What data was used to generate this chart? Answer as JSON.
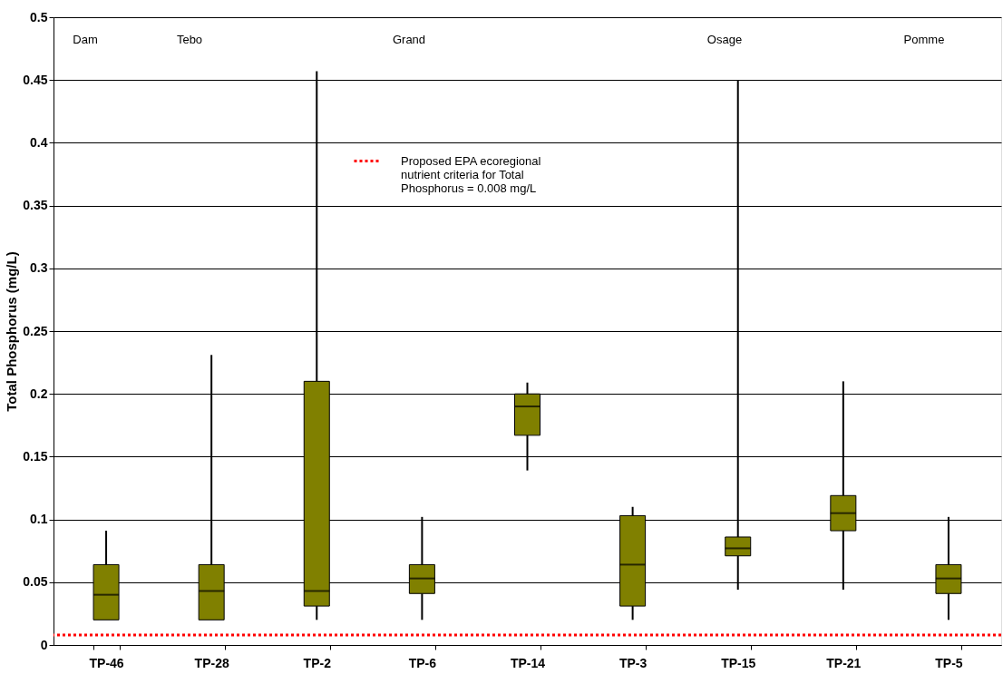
{
  "chart_data": {
    "type": "box",
    "ylabel": "Total Phosphorus (mg/L)",
    "categories": [
      "TP-46",
      "TP-28",
      "TP-2",
      "TP-6",
      "TP-14",
      "TP-3",
      "TP-15",
      "TP-21",
      "TP-5"
    ],
    "boxes": [
      {
        "low": 0.02,
        "q1": 0.02,
        "median": 0.04,
        "q3": 0.064,
        "high": 0.091
      },
      {
        "low": 0.02,
        "q1": 0.02,
        "median": 0.043,
        "q3": 0.064,
        "high": 0.231
      },
      {
        "low": 0.02,
        "q1": 0.031,
        "median": 0.043,
        "q3": 0.21,
        "high": 0.457
      },
      {
        "low": 0.02,
        "q1": 0.041,
        "median": 0.053,
        "q3": 0.064,
        "high": 0.102
      },
      {
        "low": 0.139,
        "q1": 0.167,
        "median": 0.19,
        "q3": 0.2,
        "high": 0.209
      },
      {
        "low": 0.02,
        "q1": 0.031,
        "median": 0.064,
        "q3": 0.103,
        "high": 0.11
      },
      {
        "low": 0.044,
        "q1": 0.071,
        "median": 0.077,
        "q3": 0.086,
        "high": 0.45
      },
      {
        "low": 0.044,
        "q1": 0.091,
        "median": 0.105,
        "q3": 0.119,
        "high": 0.21
      },
      {
        "low": 0.02,
        "q1": 0.041,
        "median": 0.053,
        "q3": 0.064,
        "high": 0.102
      }
    ],
    "color": "#808000",
    "ylim": [
      0,
      0.5
    ],
    "yticks": [
      0,
      0.05,
      0.1,
      0.15,
      0.2,
      0.25,
      0.3,
      0.35,
      0.4,
      0.45,
      0.5
    ],
    "grid": "y",
    "ref_lines": [
      {
        "axis": "y",
        "value": 0.008,
        "label": "Proposed EPA ecoregional nutrient criteria for Total Phosphorus = 0.008 mg/L",
        "color": "#ff0000",
        "line_style": "dotted"
      }
    ],
    "annotations": [
      "Dam",
      "Tebo",
      "Grand",
      "Osage",
      "Pomme"
    ]
  }
}
